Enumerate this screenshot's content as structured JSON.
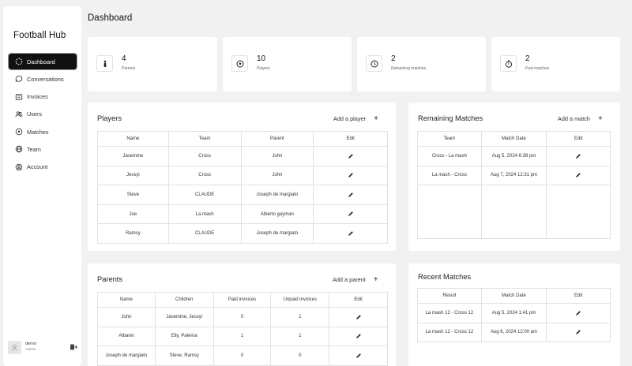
{
  "app": {
    "title": "Football Hub"
  },
  "sidebar": {
    "items": [
      {
        "label": "Dashboard",
        "icon": "dashboard-icon"
      },
      {
        "label": "Conversations",
        "icon": "chat-icon"
      },
      {
        "label": "Invoices",
        "icon": "invoice-icon"
      },
      {
        "label": "Users",
        "icon": "users-icon"
      },
      {
        "label": "Matches",
        "icon": "football-icon"
      },
      {
        "label": "Team",
        "icon": "globe-icon"
      },
      {
        "label": "Account",
        "icon": "account-icon"
      }
    ],
    "user": {
      "name": "demo",
      "role": "Admin"
    }
  },
  "page": {
    "title": "Dashboard"
  },
  "stats": [
    {
      "value": "4",
      "label": "Parents"
    },
    {
      "value": "10",
      "label": "Players"
    },
    {
      "value": "2",
      "label": "Remaining matches"
    },
    {
      "value": "2",
      "label": "Past matches"
    }
  ],
  "players": {
    "title": "Players",
    "add_label": "Add a player",
    "columns": [
      "Name",
      "Team",
      "Parent",
      "Edit"
    ],
    "rows": [
      [
        "Jasemine",
        "Cross",
        "John"
      ],
      [
        "Jessyi",
        "Cross",
        "John"
      ],
      [
        "Steve",
        "CLAUDE",
        "Joseph de margiato"
      ],
      [
        "Joe",
        "La mash",
        "Alberto gayman"
      ],
      [
        "Ramsy",
        "CLAUDE",
        "Joseph de margiato"
      ]
    ]
  },
  "remaining_matches": {
    "title": "Remaining Matches",
    "add_label": "Add a match",
    "columns": [
      "Team",
      "Match Date",
      "Edit"
    ],
    "rows": [
      [
        "Cross - La mash",
        "Aug 5, 2024 6:38 pm"
      ],
      [
        "La mash - Cross",
        "Aug 7, 2024 12:31 pm"
      ]
    ]
  },
  "parents": {
    "title": "Parents",
    "add_label": "Add a parent",
    "columns": [
      "Name",
      "Children",
      "Paid invoices",
      "Unpaid invoices",
      "Edit"
    ],
    "rows": [
      [
        "John",
        "Jasemine, Jessyi",
        "0",
        "1"
      ],
      [
        "Albaret",
        "Elly, Palema",
        "1",
        "1"
      ],
      [
        "Joseph de margiato",
        "Steve, Ramsy",
        "0",
        "0"
      ]
    ]
  },
  "recent_matches": {
    "title": "Recent Matches",
    "columns": [
      "Result",
      "Match Date",
      "Edit"
    ],
    "rows": [
      [
        "La mash 12 - Cross 12",
        "Aug 5, 2024 1:41 pm"
      ],
      [
        "La mash 12 - Cross 12",
        "Aug 6, 2024 12:00 am"
      ]
    ]
  },
  "colors": {
    "active_nav_bg": "#111111",
    "background": "#f1f1f2",
    "card": "#ffffff"
  }
}
